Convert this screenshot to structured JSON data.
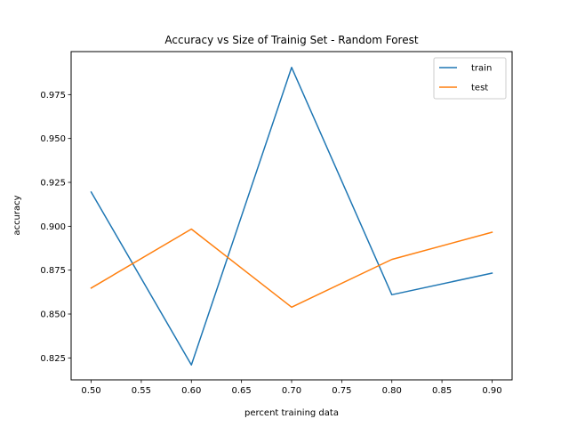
{
  "chart_data": {
    "type": "line",
    "title": "Accuracy vs Size of Trainig Set - Random Forest",
    "xlabel": "percent training data",
    "ylabel": "accuracy",
    "x": [
      0.5,
      0.6,
      0.7,
      0.8,
      0.9
    ],
    "series": [
      {
        "name": "train",
        "color": "#1f77b4",
        "values": [
          0.9195,
          0.821,
          0.9905,
          0.861,
          0.8733
        ]
      },
      {
        "name": "test",
        "color": "#ff7f0e",
        "values": [
          0.8648,
          0.8984,
          0.8539,
          0.8811,
          0.8966
        ]
      }
    ],
    "xlim": [
      0.48,
      0.92
    ],
    "ylim": [
      0.8125,
      0.9995
    ],
    "xticks": [
      0.5,
      0.55,
      0.6,
      0.65,
      0.7,
      0.75,
      0.8,
      0.85,
      0.9
    ],
    "xtick_labels": [
      "0.50",
      "0.55",
      "0.60",
      "0.65",
      "0.70",
      "0.75",
      "0.80",
      "0.85",
      "0.90"
    ],
    "yticks": [
      0.825,
      0.85,
      0.875,
      0.9,
      0.925,
      0.95,
      0.975
    ],
    "ytick_labels": [
      "0.825",
      "0.850",
      "0.875",
      "0.900",
      "0.925",
      "0.950",
      "0.975"
    ],
    "grid": false,
    "legend_position": "top-right"
  }
}
